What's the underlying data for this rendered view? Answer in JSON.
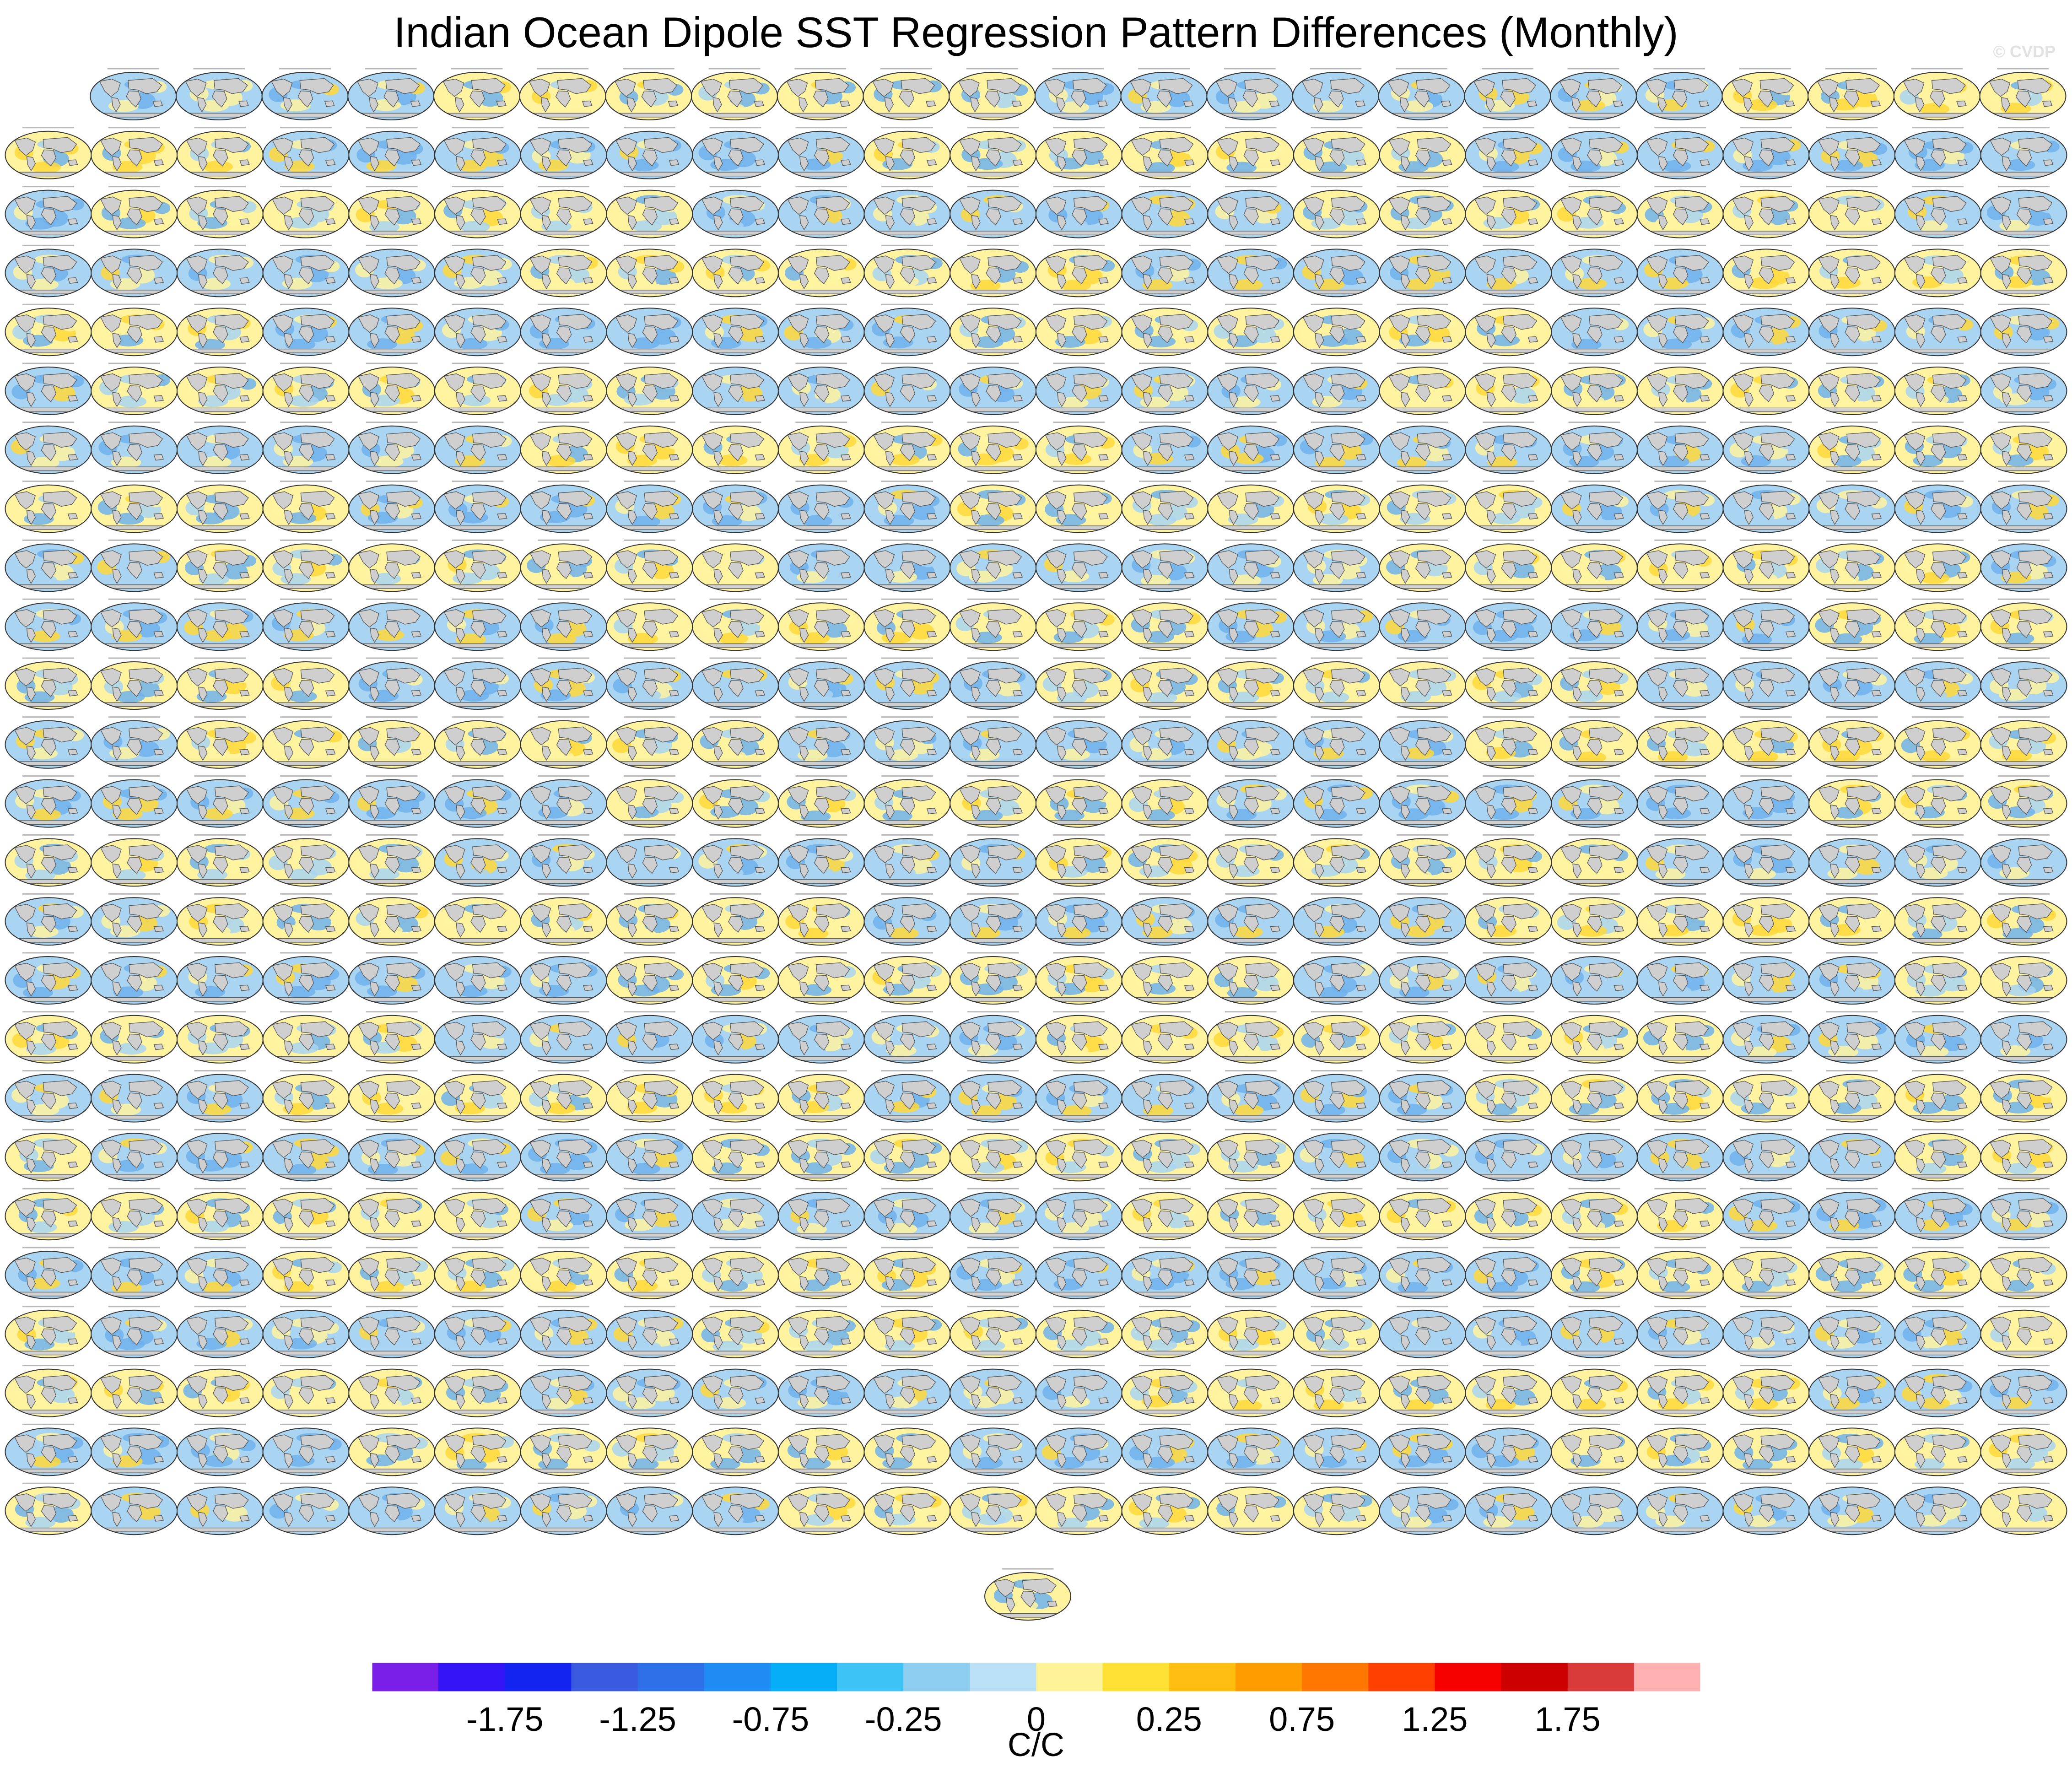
{
  "title": "Indian Ocean Dipole SST Regression Pattern Differences (Monthly)",
  "watermark": "© CVDP",
  "chart_data": {
    "type": "heatmap",
    "title": "Indian Ocean Dipole SST Regression Pattern Differences (Monthly)",
    "panel_layout": {
      "rows": [
        23,
        24,
        24,
        24,
        24,
        24,
        24,
        24,
        24,
        24,
        24,
        24,
        24,
        24,
        24,
        24,
        24,
        24,
        24,
        24,
        24,
        24,
        24,
        24,
        24,
        1
      ],
      "total_panels": 600
    },
    "colorbar": {
      "label": "C/C",
      "levels": [
        -2.0,
        -1.75,
        -1.5,
        -1.25,
        -1.0,
        -0.75,
        -0.5,
        -0.25,
        -0.1,
        0,
        0.1,
        0.25,
        0.5,
        0.75,
        1.0,
        1.25,
        1.5,
        1.75,
        2.0
      ],
      "colors": [
        "#7a1fe8",
        "#3314f5",
        "#1424f0",
        "#3a5ae0",
        "#2c6fe6",
        "#1e8cf2",
        "#05aef7",
        "#3ec3f7",
        "#8ccdf0",
        "#b9e0f4",
        "#fff39a",
        "#ffe035",
        "#ffbe10",
        "#ff9c00",
        "#ff7700",
        "#ff4000",
        "#f70000",
        "#cc0000",
        "#d83a3a",
        "#ffb0b0"
      ],
      "tick_labels": [
        "-1.75",
        "-1.25",
        "-0.75",
        "-0.25",
        "0",
        "0.25",
        "0.75",
        "1.25",
        "1.75"
      ],
      "tick_values": [
        -1.75,
        -1.25,
        -0.75,
        -0.25,
        0,
        0.25,
        0.75,
        1.25,
        1.75
      ]
    },
    "palette": {
      "land": "#cfcfcf",
      "cool": "#a9d4f2",
      "cool_strong": "#6fb2ec",
      "warm": "#fff3a0",
      "warm_strong": "#ffd83a"
    }
  }
}
